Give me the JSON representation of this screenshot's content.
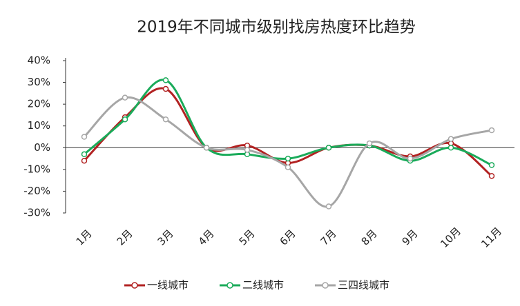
{
  "chart_data": {
    "type": "line",
    "title": "2019年不同城市级别找房热度环比趋势",
    "categories": [
      "1月",
      "2月",
      "3月",
      "4月",
      "5月",
      "6月",
      "7月",
      "8月",
      "9月",
      "10月",
      "11月"
    ],
    "series": [
      {
        "name": "一线城市",
        "color": "#b22222",
        "values": [
          -6,
          14,
          27,
          0,
          1,
          -7,
          0,
          1,
          -4,
          2,
          -13
        ]
      },
      {
        "name": "二线城市",
        "color": "#1aab5a",
        "values": [
          -3,
          13,
          31,
          0,
          -3,
          -5,
          0,
          1,
          -6,
          0,
          -8
        ]
      },
      {
        "name": "三四线城市",
        "color": "#a6a6a6",
        "values": [
          5,
          23,
          13,
          0,
          -1,
          -9,
          -27,
          2,
          -5,
          4,
          8
        ]
      }
    ],
    "ylim": [
      -30,
      40
    ],
    "yticks": [
      {
        "value": -30,
        "label": "-30%"
      },
      {
        "value": -20,
        "label": "-20%"
      },
      {
        "value": -10,
        "label": "-10%"
      },
      {
        "value": 0,
        "label": "0%"
      },
      {
        "value": 10,
        "label": "10%"
      },
      {
        "value": 20,
        "label": "20%"
      },
      {
        "value": 30,
        "label": "30%"
      },
      {
        "value": 40,
        "label": "40%"
      }
    ],
    "smooth": true,
    "legend": "bottom"
  }
}
